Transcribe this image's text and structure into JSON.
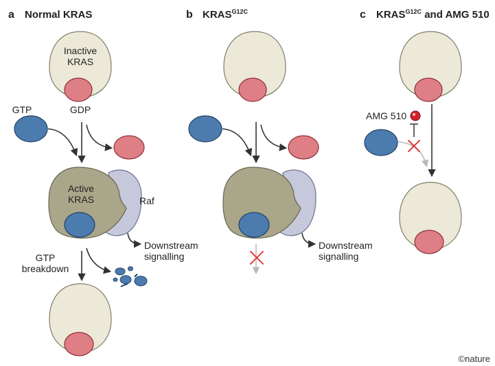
{
  "panels": {
    "a": {
      "letter": "a",
      "title": "Normal KRAS"
    },
    "b": {
      "letter": "b",
      "title": "KRAS",
      "title_sup": "G12C"
    },
    "c": {
      "letter": "c",
      "title": "KRAS",
      "title_sup": "G12C",
      "title_rest": " and AMG 510"
    }
  },
  "labels": {
    "inactive_kras": [
      "Inactive",
      "KRAS"
    ],
    "active_kras": [
      "Active",
      "KRAS"
    ],
    "gtp": "GTP",
    "gdp": "GDP",
    "raf": "Raf",
    "downstream": [
      "Downstream",
      "signalling"
    ],
    "gtp_breakdown": [
      "GTP",
      "breakdown"
    ],
    "amg510": "AMG 510"
  },
  "credit": "©nature",
  "colors": {
    "kras_inactive": "#ece9d8",
    "kras_active": "#aaa68a",
    "gdp": "#de7f86",
    "gtp": "#4c7cae",
    "raf": "#c6c8dc",
    "drug": "#d2212b",
    "block_cross": "#e23d3d",
    "arrow": "#333333",
    "arrow_faded": "#b8b8b8"
  }
}
